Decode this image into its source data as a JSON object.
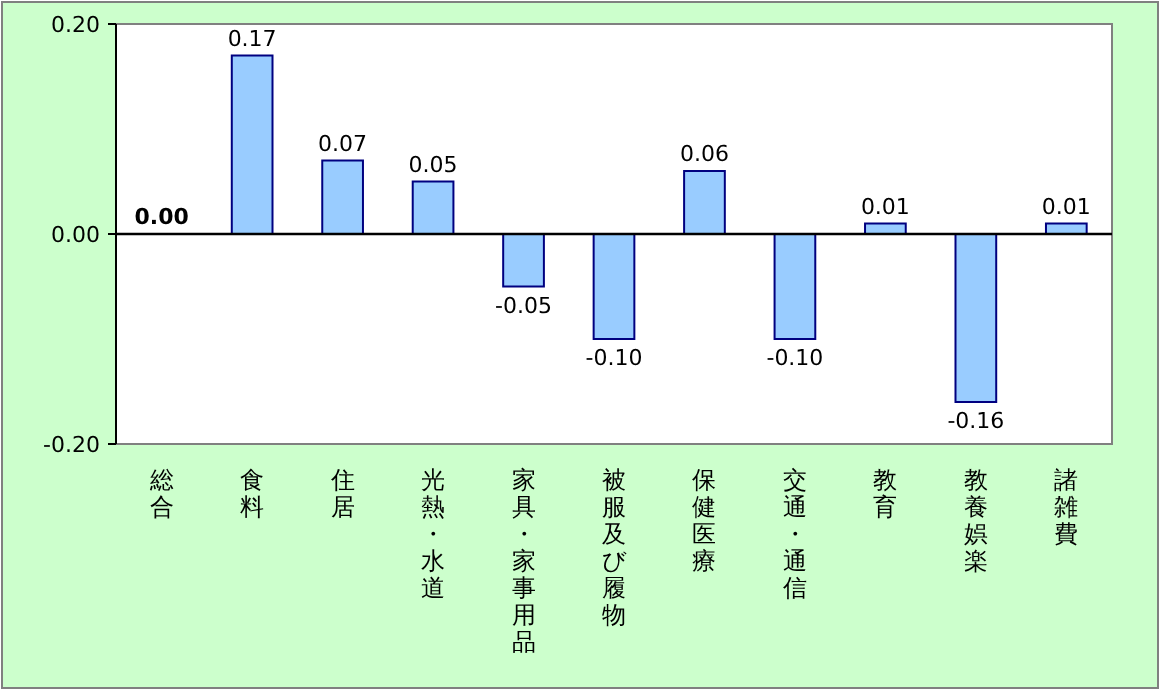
{
  "chart_data": {
    "type": "bar",
    "categories": [
      "総合",
      "食料",
      "住居",
      "光熱・水道",
      "家具・家事用品",
      "被服及び履物",
      "保健医療",
      "交通・通信",
      "教育",
      "教養娯楽",
      "諸雑費"
    ],
    "values": [
      0,
      0.17,
      0.07,
      0.05,
      -0.05,
      -0.1,
      0.06,
      -0.1,
      0.01,
      -0.16,
      0.01
    ],
    "value_labels": [
      "0.00",
      "0.17",
      "0.07",
      "0.05",
      "-0.05",
      "-0.10",
      "0.06",
      "-0.10",
      "0.01",
      "-0.16",
      "0.01"
    ],
    "color": "#99ccff",
    "ylim": [
      -0.2,
      0.2
    ],
    "yticks": [
      {
        "value": 0.2,
        "label": "0.20"
      },
      {
        "value": 0,
        "label": "0.00"
      },
      {
        "value": -0.2,
        "label": "-0.20"
      }
    ],
    "ref_lines": [
      {
        "axis": "y",
        "value": 0,
        "color": "#000000"
      }
    ]
  }
}
